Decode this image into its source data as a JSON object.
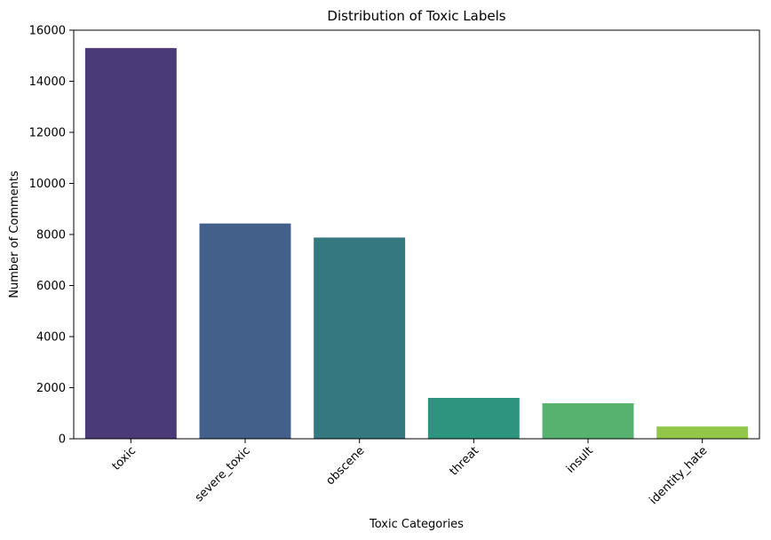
{
  "chart_data": {
    "type": "bar",
    "title": "Distribution of Toxic Labels",
    "xlabel": "Toxic Categories",
    "ylabel": "Number of Comments",
    "categories": [
      "toxic",
      "severe_toxic",
      "obscene",
      "threat",
      "insult",
      "identity_hate"
    ],
    "values": [
      15300,
      8430,
      7880,
      1600,
      1390,
      480
    ],
    "ylim": [
      0,
      16000
    ],
    "yticks": [
      "0",
      "2000",
      "4000",
      "6000",
      "8000",
      "10000",
      "12000",
      "14000",
      "16000"
    ],
    "grid": false,
    "legend": "none",
    "colors": [
      "#4a3a78",
      "#42608a",
      "#35787f",
      "#2f947f",
      "#58b26f",
      "#93c74a"
    ]
  }
}
